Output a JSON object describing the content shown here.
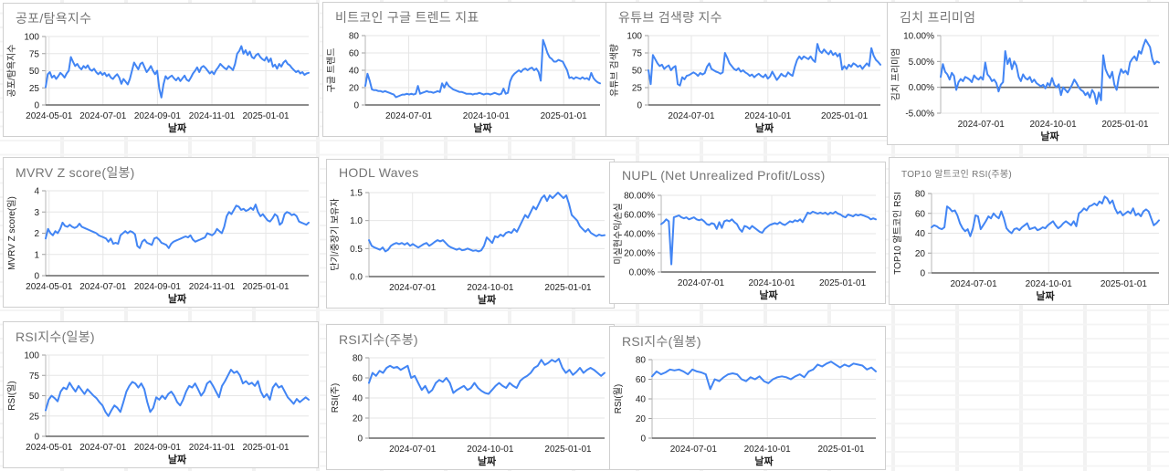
{
  "colors": {
    "line": "#4285f4",
    "title": "#757575",
    "axis_text": "#222222",
    "grid": "#e6e6e6",
    "baseline": "#666666",
    "axis_line": "#b7b7b7",
    "card_border": "#cfcfcf"
  },
  "chart_data": [
    {
      "type": "line",
      "title": "공포/탐욕지수",
      "ylabel": "공포/탐욕지수",
      "xlabel": "날짜",
      "y_ticks": [
        "0",
        "25",
        "50",
        "75",
        "100"
      ],
      "ylim": [
        0,
        100
      ],
      "x_ticks": [
        "2024-05-01",
        "2024-07-01",
        "2024-09-01",
        "2024-11-01",
        "2025-01-01"
      ],
      "x_tick_pos": [
        0.013,
        0.218,
        0.425,
        0.632,
        0.837
      ],
      "values": [
        26,
        45,
        48,
        40,
        43,
        38,
        42,
        47,
        44,
        40,
        46,
        50,
        70,
        63,
        57,
        60,
        55,
        52,
        57,
        54,
        58,
        52,
        50,
        53,
        48,
        45,
        48,
        44,
        47,
        42,
        45,
        40,
        38,
        42,
        45,
        40,
        31,
        38,
        34,
        30,
        38,
        50,
        62,
        57,
        52,
        60,
        62,
        55,
        48,
        52,
        57,
        50,
        45,
        50,
        24,
        11,
        30,
        42,
        38,
        41,
        43,
        39,
        36,
        40,
        35,
        39,
        43,
        37,
        35,
        40,
        46,
        50,
        55,
        48,
        55,
        57,
        54,
        50,
        46,
        49,
        45,
        51,
        55,
        60,
        57,
        54,
        52,
        57,
        54,
        51,
        60,
        75,
        79,
        86,
        75,
        80,
        73,
        78,
        70,
        68,
        73,
        75,
        70,
        67,
        65,
        70,
        63,
        68,
        56,
        59,
        53,
        60,
        56,
        62,
        65,
        60,
        58,
        54,
        51,
        48,
        50,
        46,
        48,
        44,
        46,
        47
      ]
    },
    {
      "type": "line",
      "title": "비트코인 구글 트렌드 지표",
      "ylabel": "구글 트렌드",
      "xlabel": "날짜",
      "y_ticks": [
        "0",
        "20",
        "40",
        "60",
        "80"
      ],
      "ylim": [
        0,
        80
      ],
      "x_ticks": [
        "2024-07-01",
        "2024-10-01",
        "2025-01-01"
      ],
      "x_tick_pos": [
        0.185,
        0.515,
        0.845
      ],
      "values": [
        22,
        36,
        28,
        18,
        17,
        17,
        16,
        16,
        15,
        16,
        15,
        14,
        13,
        12,
        9,
        10,
        11,
        12,
        12,
        13,
        12,
        13,
        12,
        13,
        22,
        13,
        14,
        15,
        16,
        15,
        15,
        14,
        15,
        16,
        15,
        25,
        20,
        26,
        22,
        20,
        18,
        17,
        16,
        15,
        15,
        14,
        13,
        13,
        13,
        12,
        13,
        13,
        14,
        13,
        12,
        13,
        13,
        12,
        13,
        14,
        13,
        12,
        13,
        19,
        13,
        14,
        27,
        33,
        36,
        38,
        40,
        38,
        41,
        42,
        40,
        42,
        43,
        40,
        42,
        38,
        28,
        75,
        68,
        60,
        55,
        53,
        50,
        50,
        52,
        51,
        50,
        45,
        40,
        31,
        32,
        30,
        32,
        31,
        30,
        32,
        30,
        31,
        29,
        37,
        31,
        28,
        26,
        25
      ]
    },
    {
      "type": "line",
      "title": "유튜브 검색량 지수",
      "ylabel": "유튜브 검색량",
      "xlabel": "날짜",
      "y_ticks": [
        "0",
        "25",
        "50",
        "75",
        "100"
      ],
      "ylim": [
        0,
        100
      ],
      "x_ticks": [
        "2024-07-01",
        "2024-10-01",
        "2025-01-01"
      ],
      "x_tick_pos": [
        0.185,
        0.515,
        0.845
      ],
      "values": [
        50,
        30,
        72,
        66,
        60,
        56,
        58,
        52,
        55,
        57,
        50,
        54,
        56,
        30,
        28,
        40,
        37,
        42,
        43,
        45,
        47,
        45,
        42,
        46,
        44,
        46,
        55,
        60,
        52,
        50,
        48,
        47,
        45,
        47,
        75,
        68,
        60,
        56,
        52,
        50,
        53,
        48,
        50,
        47,
        45,
        42,
        44,
        40,
        43,
        45,
        42,
        40,
        44,
        38,
        41,
        48,
        42,
        36,
        40,
        45,
        42,
        41,
        47,
        44,
        42,
        55,
        65,
        70,
        66,
        70,
        68,
        66,
        70,
        65,
        62,
        88,
        78,
        75,
        80,
        76,
        73,
        78,
        72,
        75,
        70,
        74,
        51,
        56,
        52,
        58,
        55,
        60,
        58,
        55,
        57,
        52,
        56,
        60,
        56,
        82,
        71,
        65,
        62,
        58
      ]
    },
    {
      "type": "line",
      "title": "김치 프리미엄",
      "ylabel": "김치 프리미엄",
      "xlabel": "날짜",
      "y_ticks": [
        "-5.00%",
        "0.00%",
        "5.00%",
        "10.00%"
      ],
      "ylim": [
        -5,
        10
      ],
      "zero_line": 0,
      "x_ticks": [
        "2024-07-01",
        "2024-10-01",
        "2025-01-01"
      ],
      "x_tick_pos": [
        0.185,
        0.515,
        0.845
      ],
      "values": [
        2,
        4.5,
        3,
        2.5,
        1.5,
        2.8,
        2.2,
        -0.5,
        1,
        1.6,
        1.2,
        2,
        1.8,
        1.5,
        1,
        2.3,
        1.8,
        1.5,
        2,
        1.5,
        4.8,
        2.5,
        2,
        1.2,
        1.5,
        0.8,
        -0.8,
        0.5,
        1,
        7,
        4.5,
        5.6,
        3.5,
        5,
        4.2,
        2,
        1.2,
        2.5,
        1.8,
        1.5,
        2,
        1,
        1.5,
        0.8,
        0.5,
        0.2,
        0.5,
        -0.2,
        0.8,
        0.3,
        1.8,
        0.5,
        0,
        0.6,
        -1.5,
        0,
        -0.5,
        -1,
        -0.3,
        0.5,
        1.5,
        0.8,
        0,
        -0.5,
        -0.8,
        -1.5,
        -1,
        -2,
        -0.5,
        -1.2,
        -3.2,
        -1,
        -2.5,
        6.2,
        3.5,
        2.5,
        1.8,
        3,
        0.5,
        -0.5,
        2,
        3.5,
        2.8,
        3.2,
        2.5,
        4.8,
        5.5,
        6,
        5.2,
        7,
        6.5,
        8,
        9.2,
        8.5,
        7.8,
        5.5,
        4.5,
        5,
        4.8
      ]
    },
    {
      "type": "line",
      "title": "MVRV Z score(일봉)",
      "ylabel": "MVRV Z score(일)",
      "xlabel": "날짜",
      "y_ticks": [
        "0",
        "1",
        "2",
        "3",
        "4"
      ],
      "ylim": [
        0,
        4
      ],
      "x_ticks": [
        "2024-05-01",
        "2024-07-01",
        "2024-09-01",
        "2024-11-01",
        "2025-01-01"
      ],
      "x_tick_pos": [
        0.013,
        0.218,
        0.425,
        0.632,
        0.837
      ],
      "values": [
        1.75,
        2.2,
        2.0,
        1.9,
        2.1,
        2.0,
        2.2,
        2.5,
        2.35,
        2.3,
        2.4,
        2.3,
        2.25,
        2.3,
        2.45,
        2.3,
        2.25,
        2.2,
        2.15,
        2.1,
        2.05,
        2.0,
        1.9,
        1.85,
        1.8,
        1.75,
        1.6,
        1.75,
        1.5,
        1.55,
        1.5,
        1.9,
        2.0,
        2.1,
        2.0,
        2.1,
        2.05,
        1.95,
        1.4,
        1.3,
        1.6,
        1.7,
        1.55,
        1.5,
        1.45,
        1.75,
        1.8,
        1.7,
        1.55,
        1.5,
        1.45,
        1.3,
        1.5,
        1.6,
        1.65,
        1.7,
        1.75,
        1.8,
        1.85,
        1.8,
        1.9,
        1.7,
        1.6,
        1.65,
        1.7,
        1.75,
        1.8,
        2.0,
        1.95,
        1.9,
        2.0,
        2.2,
        2.1,
        2.0,
        2.3,
        2.8,
        3.0,
        2.9,
        3.1,
        3.3,
        3.25,
        3.1,
        3.15,
        3.05,
        3.1,
        3.2,
        3.1,
        3.35,
        3.0,
        2.8,
        2.9,
        2.75,
        2.6,
        2.55,
        2.7,
        2.9,
        2.8,
        2.4,
        2.5,
        2.9,
        3.0,
        2.95,
        2.85,
        2.9,
        2.8,
        2.55,
        2.5,
        2.45,
        2.4,
        2.5
      ]
    },
    {
      "type": "line",
      "title": "HODL Waves",
      "ylabel": "단기/중장기 보유자",
      "xlabel": "날짜",
      "y_ticks": [
        "0.0",
        "0.5",
        "1.0",
        "1.5"
      ],
      "ylim": [
        0,
        1.5
      ],
      "x_ticks": [
        "2024-07-01",
        "2024-10-01",
        "2025-01-01"
      ],
      "x_tick_pos": [
        0.185,
        0.515,
        0.845
      ],
      "values": [
        0.65,
        0.55,
        0.52,
        0.5,
        0.48,
        0.52,
        0.45,
        0.48,
        0.55,
        0.58,
        0.6,
        0.58,
        0.6,
        0.57,
        0.6,
        0.55,
        0.58,
        0.55,
        0.52,
        0.55,
        0.58,
        0.6,
        0.55,
        0.58,
        0.62,
        0.65,
        0.63,
        0.65,
        0.6,
        0.55,
        0.52,
        0.5,
        0.48,
        0.5,
        0.47,
        0.48,
        0.5,
        0.48,
        0.46,
        0.47,
        0.45,
        0.47,
        0.55,
        0.7,
        0.65,
        0.6,
        0.72,
        0.7,
        0.75,
        0.72,
        0.78,
        0.8,
        0.78,
        0.85,
        0.8,
        0.9,
        1.0,
        1.1,
        1.05,
        1.15,
        1.25,
        1.2,
        1.3,
        1.4,
        1.45,
        1.35,
        1.45,
        1.4,
        1.45,
        1.5,
        1.45,
        1.4,
        1.45,
        1.3,
        1.1,
        1.05,
        1.0,
        0.9,
        0.85,
        0.8,
        0.85,
        0.78,
        0.75,
        0.72,
        0.75,
        0.73,
        0.74
      ]
    },
    {
      "type": "line",
      "title": "NUPL (Net Unrealized Profit/Loss)",
      "ylabel": "미실현수익/손실",
      "xlabel": "날짜",
      "y_ticks": [
        "0.00%",
        "20.00%",
        "40.00%",
        "60.00%",
        "80.00%"
      ],
      "ylim": [
        0,
        80
      ],
      "x_ticks": [
        "2024-07-01",
        "2024-10-01",
        "2025-01-01"
      ],
      "x_tick_pos": [
        0.185,
        0.515,
        0.845
      ],
      "values": [
        50,
        52,
        55,
        53,
        8,
        57,
        58,
        59,
        57,
        56,
        57,
        55,
        56,
        57,
        55,
        54,
        55,
        53,
        50,
        49,
        51,
        50,
        45,
        52,
        46,
        53,
        54,
        53,
        55,
        52,
        50,
        45,
        42,
        48,
        47,
        45,
        48,
        46,
        44,
        42,
        41,
        45,
        47,
        49,
        50,
        51,
        50,
        52,
        50,
        49,
        51,
        53,
        52,
        54,
        53,
        55,
        52,
        57,
        62,
        61,
        63,
        62,
        61,
        62,
        61,
        62,
        60,
        62,
        61,
        63,
        61,
        60,
        58,
        57,
        60,
        59,
        58,
        60,
        59,
        60,
        59,
        58,
        57,
        55,
        56,
        55
      ]
    },
    {
      "type": "line",
      "title": "TOP10 알트코인 RSI(주봉)",
      "ylabel": "TOP10 알트코인 RSI",
      "xlabel": "날짜",
      "y_ticks": [
        "0",
        "20",
        "40",
        "60",
        "80"
      ],
      "ylim": [
        0,
        80
      ],
      "x_ticks": [
        "2024-07-01",
        "2024-10-01",
        "2025-01-01"
      ],
      "x_tick_pos": [
        0.185,
        0.515,
        0.845
      ],
      "values": [
        46,
        48,
        47,
        45,
        44,
        46,
        67,
        65,
        62,
        63,
        58,
        50,
        45,
        42,
        44,
        37,
        45,
        58,
        57,
        44,
        48,
        52,
        57,
        55,
        60,
        57,
        55,
        62,
        55,
        45,
        42,
        40,
        44,
        45,
        43,
        46,
        48,
        50,
        44,
        45,
        46,
        43,
        44,
        46,
        45,
        48,
        50,
        52,
        48,
        45,
        47,
        50,
        52,
        50,
        48,
        52,
        47,
        60,
        62,
        65,
        63,
        67,
        68,
        70,
        68,
        72,
        70,
        77,
        75,
        70,
        73,
        65,
        60,
        62,
        58,
        60,
        62,
        60,
        65,
        58,
        60,
        57,
        62,
        64,
        62,
        55,
        48,
        50,
        53
      ]
    },
    {
      "type": "line",
      "title": "RSI지수(일봉)",
      "ylabel": "RSI(일)",
      "xlabel": "날짜",
      "y_ticks": [
        "0",
        "25",
        "50",
        "75",
        "100"
      ],
      "ylim": [
        0,
        100
      ],
      "x_ticks": [
        "2024-05-01",
        "2024-07-01",
        "2024-09-01",
        "2024-11-01",
        "2025-01-01"
      ],
      "x_tick_pos": [
        0.013,
        0.218,
        0.425,
        0.632,
        0.837
      ],
      "values": [
        32,
        45,
        50,
        47,
        43,
        55,
        60,
        58,
        66,
        60,
        55,
        62,
        57,
        52,
        58,
        54,
        50,
        47,
        42,
        38,
        30,
        25,
        32,
        38,
        35,
        30,
        42,
        55,
        62,
        67,
        65,
        60,
        65,
        58,
        42,
        30,
        35,
        48,
        45,
        50,
        46,
        52,
        55,
        50,
        42,
        38,
        45,
        55,
        62,
        60,
        65,
        58,
        50,
        55,
        65,
        68,
        62,
        55,
        48,
        62,
        68,
        75,
        82,
        78,
        80,
        75,
        65,
        68,
        64,
        66,
        62,
        68,
        55,
        48,
        52,
        45,
        60,
        65,
        60,
        62,
        55,
        48,
        44,
        40,
        46,
        42,
        45,
        48,
        45
      ]
    },
    {
      "type": "line",
      "title": "RSI지수(주봉)",
      "ylabel": "RSI(주)",
      "xlabel": "날짜",
      "y_ticks": [
        "0",
        "20",
        "40",
        "60",
        "80"
      ],
      "ylim": [
        0,
        80
      ],
      "x_ticks": [
        "2024-07-01",
        "2024-10-01",
        "2025-01-01"
      ],
      "x_tick_pos": [
        0.185,
        0.515,
        0.845
      ],
      "values": [
        55,
        65,
        62,
        67,
        65,
        70,
        72,
        70,
        71,
        68,
        70,
        72,
        60,
        62,
        55,
        48,
        52,
        45,
        48,
        55,
        58,
        56,
        60,
        55,
        45,
        48,
        50,
        52,
        48,
        50,
        55,
        50,
        47,
        45,
        44,
        48,
        52,
        55,
        52,
        50,
        55,
        52,
        50,
        57,
        60,
        62,
        65,
        70,
        72,
        78,
        73,
        75,
        78,
        76,
        79,
        70,
        65,
        68,
        63,
        66,
        70,
        65,
        68,
        70,
        68,
        65,
        62,
        65
      ]
    },
    {
      "type": "line",
      "title": "RSI지수(월봉)",
      "ylabel": "RSI(월)",
      "xlabel": "날짜",
      "y_ticks": [
        "0",
        "20",
        "40",
        "60",
        "80"
      ],
      "ylim": [
        0,
        80
      ],
      "x_ticks": [
        "2024-07-01",
        "2024-10-01",
        "2025-01-01"
      ],
      "x_tick_pos": [
        0.185,
        0.515,
        0.845
      ],
      "values": [
        63,
        68,
        65,
        67,
        70,
        69,
        70,
        68,
        65,
        70,
        68,
        67,
        65,
        50,
        60,
        58,
        62,
        65,
        66,
        65,
        60,
        58,
        62,
        60,
        63,
        58,
        56,
        60,
        62,
        63,
        62,
        60,
        63,
        65,
        62,
        68,
        70,
        75,
        73,
        76,
        78,
        75,
        72,
        75,
        73,
        76,
        75,
        74,
        70,
        72,
        68
      ]
    }
  ]
}
